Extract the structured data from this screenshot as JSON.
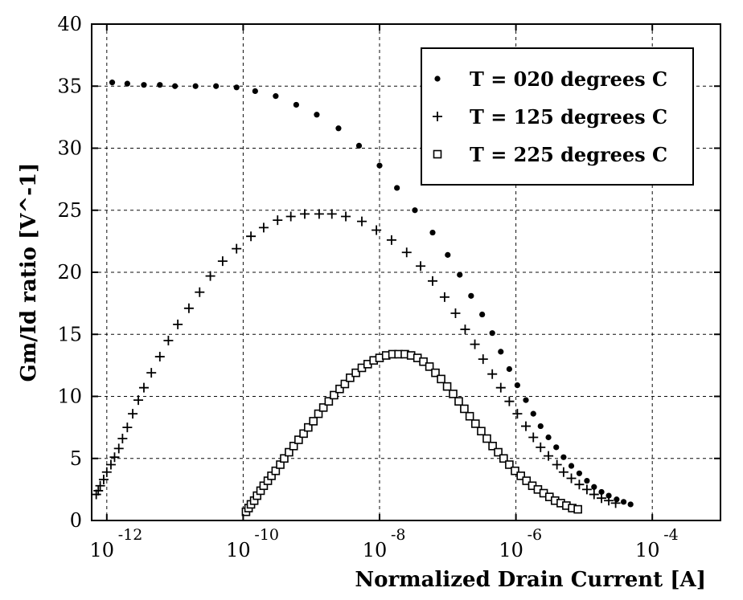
{
  "chart_data": {
    "type": "scatter",
    "xlabel": "Normalized Drain Current [A]",
    "ylabel": "Gm/Id ratio [V^-1]",
    "x_scale": "log",
    "xlim": [
      6e-13,
      0.001
    ],
    "ylim": [
      0,
      40
    ],
    "grid": true,
    "legend_position": "top-right",
    "x_ticks": [
      {
        "base": "10",
        "exp": "-12",
        "value": 1e-12
      },
      {
        "base": "10",
        "exp": "-10",
        "value": 1e-10
      },
      {
        "base": "10",
        "exp": "-8",
        "value": 1e-08
      },
      {
        "base": "10",
        "exp": "-6",
        "value": 1e-06
      },
      {
        "base": "10",
        "exp": "-4",
        "value": 0.0001
      }
    ],
    "y_ticks": [
      0,
      5,
      10,
      15,
      20,
      25,
      30,
      35,
      40
    ],
    "series": [
      {
        "name": "T = 020 degrees C",
        "marker": "dot",
        "color": "#000000",
        "points": [
          [
            1.2e-12,
            35.3
          ],
          [
            2e-12,
            35.2
          ],
          [
            3.5e-12,
            35.1
          ],
          [
            6e-12,
            35.1
          ],
          [
            1e-11,
            35.0
          ],
          [
            2e-11,
            35.0
          ],
          [
            4e-11,
            35.0
          ],
          [
            8e-11,
            34.9
          ],
          [
            1.5e-10,
            34.6
          ],
          [
            3e-10,
            34.2
          ],
          [
            6e-10,
            33.5
          ],
          [
            1.2e-09,
            32.7
          ],
          [
            2.5e-09,
            31.6
          ],
          [
            5e-09,
            30.2
          ],
          [
            1e-08,
            28.6
          ],
          [
            1.8e-08,
            26.8
          ],
          [
            3.3e-08,
            25.0
          ],
          [
            6e-08,
            23.2
          ],
          [
            1e-07,
            21.4
          ],
          [
            1.5e-07,
            19.8
          ],
          [
            2.2e-07,
            18.1
          ],
          [
            3.2e-07,
            16.6
          ],
          [
            4.5e-07,
            15.1
          ],
          [
            6e-07,
            13.6
          ],
          [
            8e-07,
            12.2
          ],
          [
            1.05e-06,
            10.9
          ],
          [
            1.4e-06,
            9.7
          ],
          [
            1.8e-06,
            8.6
          ],
          [
            2.3e-06,
            7.6
          ],
          [
            3e-06,
            6.7
          ],
          [
            3.9e-06,
            5.9
          ],
          [
            5e-06,
            5.1
          ],
          [
            6.5e-06,
            4.4
          ],
          [
            8.5e-06,
            3.8
          ],
          [
            1.1e-05,
            3.2
          ],
          [
            1.4e-05,
            2.7
          ],
          [
            1.8e-05,
            2.3
          ],
          [
            2.3e-05,
            2.0
          ],
          [
            3e-05,
            1.7
          ],
          [
            3.8e-05,
            1.5
          ],
          [
            4.8e-05,
            1.3
          ]
        ]
      },
      {
        "name": "T = 125 degrees C",
        "marker": "plus",
        "color": "#000000",
        "points": [
          [
            7e-13,
            2.1
          ],
          [
            7.5e-13,
            2.4
          ],
          [
            8e-13,
            2.8
          ],
          [
            9e-13,
            3.3
          ],
          [
            1e-12,
            3.9
          ],
          [
            1.15e-12,
            4.5
          ],
          [
            1.3e-12,
            5.1
          ],
          [
            1.5e-12,
            5.8
          ],
          [
            1.7e-12,
            6.6
          ],
          [
            2e-12,
            7.5
          ],
          [
            2.4e-12,
            8.6
          ],
          [
            2.9e-12,
            9.7
          ],
          [
            3.5e-12,
            10.7
          ],
          [
            4.5e-12,
            11.9
          ],
          [
            6e-12,
            13.2
          ],
          [
            8e-12,
            14.5
          ],
          [
            1.1e-11,
            15.8
          ],
          [
            1.6e-11,
            17.1
          ],
          [
            2.3e-11,
            18.4
          ],
          [
            3.3e-11,
            19.7
          ],
          [
            5e-11,
            20.9
          ],
          [
            8e-11,
            21.9
          ],
          [
            1.3e-10,
            22.9
          ],
          [
            2e-10,
            23.6
          ],
          [
            3.2e-10,
            24.2
          ],
          [
            5e-10,
            24.5
          ],
          [
            8e-10,
            24.7
          ],
          [
            1.3e-09,
            24.7
          ],
          [
            2e-09,
            24.7
          ],
          [
            3.2e-09,
            24.5
          ],
          [
            5.5e-09,
            24.1
          ],
          [
            9e-09,
            23.4
          ],
          [
            1.5e-08,
            22.6
          ],
          [
            2.5e-08,
            21.6
          ],
          [
            4e-08,
            20.5
          ],
          [
            6e-08,
            19.3
          ],
          [
            9e-08,
            18.0
          ],
          [
            1.3e-07,
            16.7
          ],
          [
            1.8e-07,
            15.4
          ],
          [
            2.5e-07,
            14.2
          ],
          [
            3.3e-07,
            13.0
          ],
          [
            4.5e-07,
            11.8
          ],
          [
            6e-07,
            10.7
          ],
          [
            8e-07,
            9.6
          ],
          [
            1.05e-06,
            8.6
          ],
          [
            1.4e-06,
            7.6
          ],
          [
            1.8e-06,
            6.7
          ],
          [
            2.3e-06,
            5.9
          ],
          [
            3e-06,
            5.2
          ],
          [
            4e-06,
            4.5
          ],
          [
            5e-06,
            3.9
          ],
          [
            6.5e-06,
            3.4
          ],
          [
            8.5e-06,
            2.9
          ],
          [
            1.1e-05,
            2.5
          ],
          [
            1.4e-05,
            2.1
          ],
          [
            1.8e-05,
            1.8
          ],
          [
            2.3e-05,
            1.6
          ],
          [
            2.9e-05,
            1.4
          ]
        ]
      },
      {
        "name": "T = 225 degrees C",
        "marker": "square",
        "color": "#000000",
        "points": [
          [
            1.1e-10,
            0.7
          ],
          [
            1.2e-10,
            1.0
          ],
          [
            1.3e-10,
            1.3
          ],
          [
            1.45e-10,
            1.6
          ],
          [
            1.6e-10,
            2.0
          ],
          [
            1.8e-10,
            2.4
          ],
          [
            2e-10,
            2.8
          ],
          [
            2.3e-10,
            3.2
          ],
          [
            2.6e-10,
            3.6
          ],
          [
            3e-10,
            4.0
          ],
          [
            3.5e-10,
            4.5
          ],
          [
            4e-10,
            5.0
          ],
          [
            4.7e-10,
            5.5
          ],
          [
            5.5e-10,
            6.0
          ],
          [
            6.5e-10,
            6.5
          ],
          [
            7.7e-10,
            7.0
          ],
          [
            9e-10,
            7.5
          ],
          [
            1.07e-09,
            8.0
          ],
          [
            1.27e-09,
            8.6
          ],
          [
            1.5e-09,
            9.1
          ],
          [
            1.8e-09,
            9.6
          ],
          [
            2.15e-09,
            10.1
          ],
          [
            2.6e-09,
            10.6
          ],
          [
            3.1e-09,
            11.0
          ],
          [
            3.7e-09,
            11.5
          ],
          [
            4.5e-09,
            11.9
          ],
          [
            5.5e-09,
            12.3
          ],
          [
            6.7e-09,
            12.6
          ],
          [
            8.2e-09,
            12.9
          ],
          [
            1e-08,
            13.1
          ],
          [
            1.25e-08,
            13.3
          ],
          [
            1.55e-08,
            13.4
          ],
          [
            1.9e-08,
            13.4
          ],
          [
            2.35e-08,
            13.4
          ],
          [
            2.9e-08,
            13.3
          ],
          [
            3.6e-08,
            13.1
          ],
          [
            4.4e-08,
            12.8
          ],
          [
            5.4e-08,
            12.4
          ],
          [
            6.6e-08,
            11.9
          ],
          [
            8e-08,
            11.4
          ],
          [
            9.8e-08,
            10.8
          ],
          [
            1.2e-07,
            10.2
          ],
          [
            1.45e-07,
            9.6
          ],
          [
            1.75e-07,
            9.0
          ],
          [
            2.1e-07,
            8.4
          ],
          [
            2.55e-07,
            7.8
          ],
          [
            3.1e-07,
            7.2
          ],
          [
            3.75e-07,
            6.6
          ],
          [
            4.55e-07,
            6.0
          ],
          [
            5.5e-07,
            5.5
          ],
          [
            6.6e-07,
            5.0
          ],
          [
            8e-07,
            4.5
          ],
          [
            9.7e-07,
            4.0
          ],
          [
            1.18e-06,
            3.6
          ],
          [
            1.43e-06,
            3.2
          ],
          [
            1.74e-06,
            2.8
          ],
          [
            2.1e-06,
            2.5
          ],
          [
            2.55e-06,
            2.2
          ],
          [
            3.1e-06,
            1.9
          ],
          [
            3.75e-06,
            1.6
          ],
          [
            4.55e-06,
            1.4
          ],
          [
            5.5e-06,
            1.2
          ],
          [
            6.7e-06,
            1.0
          ],
          [
            8.1e-06,
            0.9
          ]
        ]
      }
    ]
  }
}
